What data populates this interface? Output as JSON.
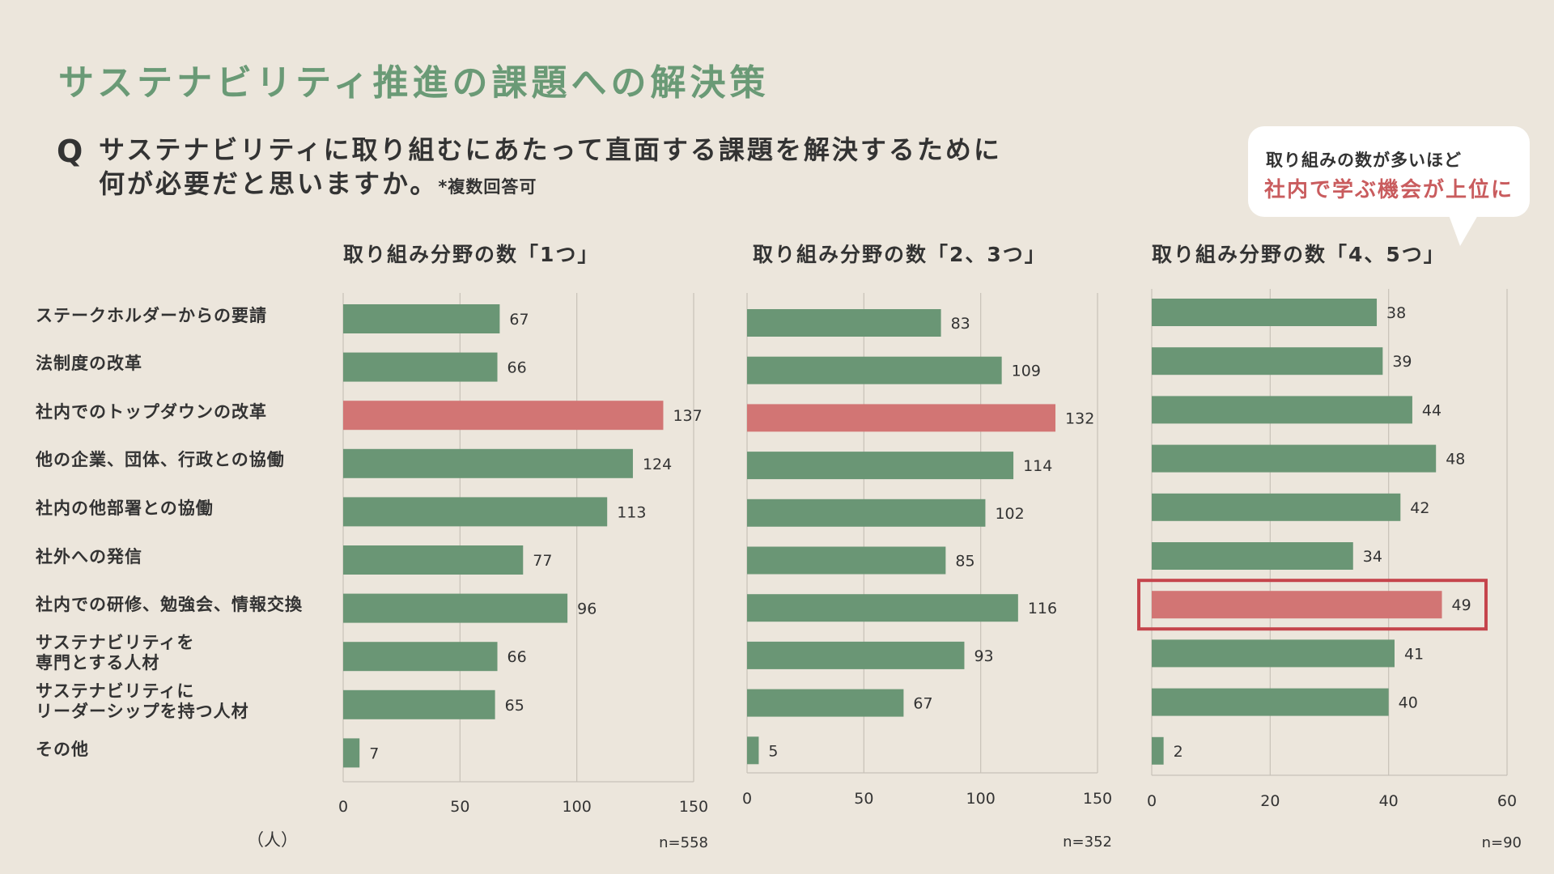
{
  "page_title": "サステナビリティ推進の課題への解決策",
  "question": {
    "mark": "Q",
    "line1": "サステナビリティに取り組むにあたって直面する課題を解決するために",
    "line2": "何が必要だと思いますか。",
    "note": "*複数回答可"
  },
  "callout": {
    "line1": "取り組みの数が多いほど",
    "line2": "社内で学ぶ機会が上位に"
  },
  "unit_label": "（人）",
  "colors": {
    "bar_default": "#6a9675",
    "bar_highlight": "#d27574",
    "highlight_frame": "#c5454c",
    "grid": "#c7c1b8",
    "title": "#6a9a76"
  },
  "chart_data": [
    {
      "type": "bar",
      "orientation": "horizontal",
      "title": "取り組み分野の数「1つ」",
      "categories": [
        "ステークホルダーからの要請",
        "法制度の改革",
        "社内でのトップダウンの改革",
        "他の企業、団体、行政との協働",
        "社内の他部署との協働",
        "社外への発信",
        "社内での研修、勉強会、情報交換",
        "サステナビリティを専門とする人材",
        "サステナビリティにリーダーシップを持つ人材",
        "その他"
      ],
      "values": [
        67,
        66,
        137,
        124,
        113,
        77,
        96,
        66,
        65,
        7
      ],
      "highlight_index": 2,
      "xlim": [
        0,
        150
      ],
      "ticks": [
        0,
        50,
        100,
        150
      ],
      "n_label": "n=558",
      "grid": true
    },
    {
      "type": "bar",
      "orientation": "horizontal",
      "title": "取り組み分野の数「2、3つ」",
      "categories": [
        "ステークホルダーからの要請",
        "法制度の改革",
        "社内でのトップダウンの改革",
        "他の企業、団体、行政との協働",
        "社内の他部署との協働",
        "社外への発信",
        "社内での研修、勉強会、情報交換",
        "サステナビリティを専門とする人材",
        "サステナビリティにリーダーシップを持つ人材",
        "その他"
      ],
      "values": [
        83,
        109,
        132,
        114,
        102,
        85,
        116,
        93,
        67,
        5
      ],
      "highlight_index": 2,
      "xlim": [
        0,
        150
      ],
      "ticks": [
        0,
        50,
        100,
        150
      ],
      "n_label": "n=352",
      "grid": true
    },
    {
      "type": "bar",
      "orientation": "horizontal",
      "title": "取り組み分野の数「4、5つ」",
      "categories": [
        "ステークホルダーからの要請",
        "法制度の改革",
        "社内でのトップダウンの改革",
        "他の企業、団体、行政との協働",
        "社内の他部署との協働",
        "社外への発信",
        "社内での研修、勉強会、情報交換",
        "サステナビリティを専門とする人材",
        "サステナビリティにリーダーシップを持つ人材",
        "その他"
      ],
      "values": [
        38,
        39,
        44,
        48,
        42,
        34,
        49,
        41,
        40,
        2
      ],
      "highlight_index": 6,
      "framed_index": 6,
      "xlim": [
        0,
        60
      ],
      "ticks": [
        0,
        20,
        40,
        60
      ],
      "n_label": "n=90",
      "grid": true
    }
  ],
  "category_labels": [
    {
      "lines": [
        "ステークホルダーからの要請"
      ]
    },
    {
      "lines": [
        "法制度の改革"
      ]
    },
    {
      "lines": [
        "社内でのトップダウンの改革"
      ]
    },
    {
      "lines": [
        "他の企業、団体、行政との協働"
      ]
    },
    {
      "lines": [
        "社内の他部署との協働"
      ]
    },
    {
      "lines": [
        "社外への発信"
      ]
    },
    {
      "lines": [
        "社内での研修、勉強会、情報交換"
      ]
    },
    {
      "lines": [
        "サステナビリティを",
        "専門とする人材"
      ]
    },
    {
      "lines": [
        "サステナビリティに",
        "リーダーシップを持つ人材"
      ]
    },
    {
      "lines": [
        "その他"
      ]
    }
  ]
}
